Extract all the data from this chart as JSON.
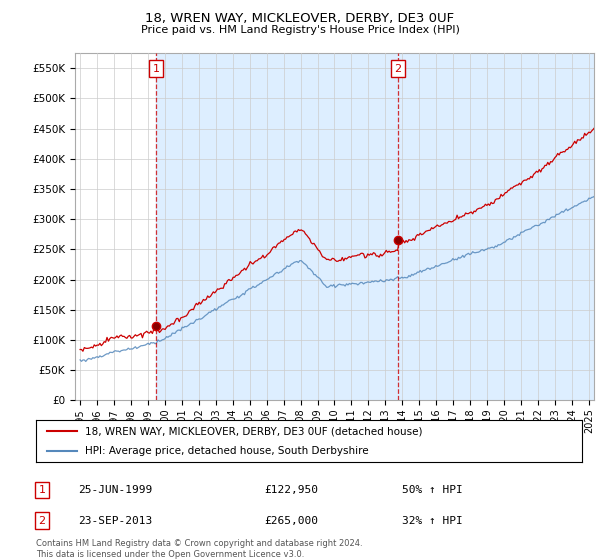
{
  "title": "18, WREN WAY, MICKLEOVER, DERBY, DE3 0UF",
  "subtitle": "Price paid vs. HM Land Registry's House Price Index (HPI)",
  "legend_line1": "18, WREN WAY, MICKLEOVER, DERBY, DE3 0UF (detached house)",
  "legend_line2": "HPI: Average price, detached house, South Derbyshire",
  "annotation1_date": "25-JUN-1999",
  "annotation1_price": "£122,950",
  "annotation1_hpi": "50% ↑ HPI",
  "annotation2_date": "23-SEP-2013",
  "annotation2_price": "£265,000",
  "annotation2_hpi": "32% ↑ HPI",
  "footer": "Contains HM Land Registry data © Crown copyright and database right 2024.\nThis data is licensed under the Open Government Licence v3.0.",
  "red_color": "#cc0000",
  "blue_color": "#5588bb",
  "shade_color": "#ddeeff",
  "background_color": "#ffffff",
  "grid_color": "#cccccc",
  "ylim": [
    0,
    575000
  ],
  "yticks": [
    0,
    50000,
    100000,
    150000,
    200000,
    250000,
    300000,
    350000,
    400000,
    450000,
    500000,
    550000
  ],
  "sale1_time": 1999.49,
  "sale2_time": 2013.73,
  "sale1_price": 122950,
  "sale2_price": 265000,
  "xlim_start": 1994.7,
  "xlim_end": 2025.3
}
